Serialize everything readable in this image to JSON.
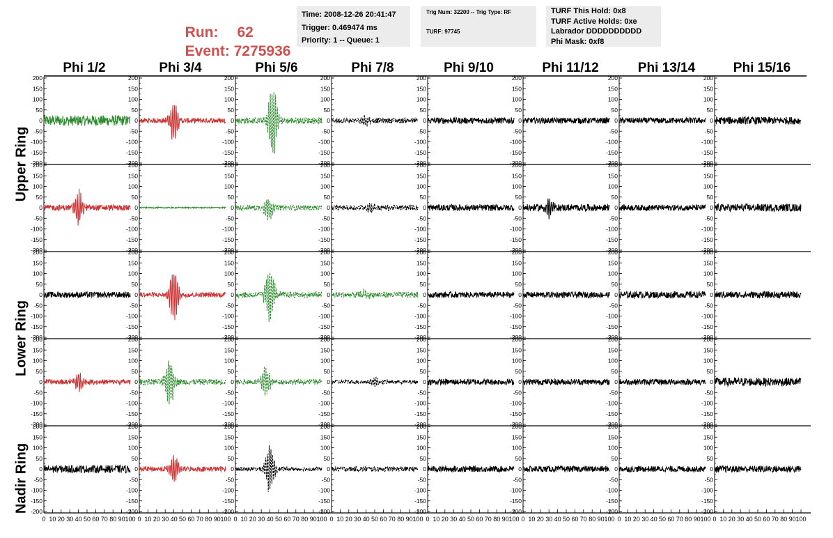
{
  "header": {
    "run_label": "Run:",
    "run_value": "62",
    "event_label": "Event:",
    "event_value": "7275936",
    "time": "Time: 2008-12-26 20:41:47",
    "trigger": "Trigger: 0.469474 ms",
    "priority": "Priority: 1 -- Queue: 1",
    "trig_num": "Trig Num: 32200 -- Trig Type: RF",
    "turf": "TURF: 97745",
    "turf_hold": "TURF This Hold: 0x8",
    "turf_active": "TURF Active Holds: 0xe",
    "labrador": "Labrador DDDDDDDDDD",
    "phi_mask": "Phi Mask: 0xf8"
  },
  "columns": [
    "Phi 1/2",
    "Phi 3/4",
    "Phi 5/6",
    "Phi 7/8",
    "Phi 9/10",
    "Phi 11/12",
    "Phi 13/14",
    "Phi 15/16"
  ],
  "rings": [
    "Upper Ring",
    "Lower Ring",
    "Nadir Ring"
  ],
  "y_ticks": [
    "200",
    "150",
    "100",
    "50",
    "0",
    "-50",
    "-100",
    "-150",
    "-200"
  ],
  "x_ticks": [
    "0",
    "10",
    "20",
    "30",
    "40",
    "50",
    "60",
    "70",
    "80",
    "90",
    "100"
  ],
  "colors": {
    "run_text": "#d05050",
    "green": "#2e8b2e",
    "red": "#cc3333",
    "black": "#000000",
    "info_bg": "#ececec"
  },
  "chart_data": {
    "type": "line",
    "xlim": [
      0,
      100
    ],
    "ylim": [
      -200,
      200
    ],
    "rows": 5,
    "cols": 8,
    "traces": [
      [
        {
          "color": "green",
          "amp": 25,
          "burst": 0,
          "style": "solid"
        },
        {
          "color": "red",
          "amp": 12,
          "burst": 100,
          "center": 40,
          "style": "solid"
        },
        {
          "color": "green",
          "amp": 15,
          "burst": 180,
          "center": 43,
          "style": "dashed"
        },
        {
          "color": "black",
          "amp": 12,
          "burst": 30,
          "center": 40,
          "style": "dashed"
        },
        {
          "color": "black",
          "amp": 15,
          "burst": 0,
          "style": "solid"
        },
        {
          "color": "black",
          "amp": 14,
          "burst": 0,
          "style": "solid"
        },
        {
          "color": "black",
          "amp": 14,
          "burst": 0,
          "style": "solid"
        },
        {
          "color": "black",
          "amp": 18,
          "burst": 0,
          "style": "solid"
        }
      ],
      [
        {
          "color": "red",
          "amp": 14,
          "burst": 90,
          "center": 40,
          "style": "solid"
        },
        {
          "color": "green",
          "amp": 3,
          "burst": 0,
          "style": "solid"
        },
        {
          "color": "green",
          "amp": 12,
          "burst": 70,
          "center": 38,
          "style": "dashed"
        },
        {
          "color": "black",
          "amp": 12,
          "burst": 25,
          "center": 45,
          "style": "dashed"
        },
        {
          "color": "black",
          "amp": 15,
          "burst": 0,
          "style": "solid"
        },
        {
          "color": "black",
          "amp": 16,
          "burst": 45,
          "center": 30,
          "style": "solid"
        },
        {
          "color": "black",
          "amp": 14,
          "burst": 0,
          "style": "solid"
        },
        {
          "color": "black",
          "amp": 18,
          "burst": 0,
          "style": "solid"
        }
      ],
      [
        {
          "color": "black",
          "amp": 14,
          "burst": 0,
          "style": "solid"
        },
        {
          "color": "red",
          "amp": 12,
          "burst": 140,
          "center": 40,
          "style": "solid"
        },
        {
          "color": "green",
          "amp": 14,
          "burst": 160,
          "center": 40,
          "style": "dashed"
        },
        {
          "color": "green",
          "amp": 14,
          "burst": 25,
          "center": 40,
          "style": "dashed"
        },
        {
          "color": "black",
          "amp": 14,
          "burst": 0,
          "style": "solid"
        },
        {
          "color": "black",
          "amp": 14,
          "burst": 0,
          "style": "solid"
        },
        {
          "color": "black",
          "amp": 16,
          "burst": 0,
          "style": "solid"
        },
        {
          "color": "black",
          "amp": 16,
          "burst": 0,
          "style": "solid"
        }
      ],
      [
        {
          "color": "red",
          "amp": 12,
          "burst": 50,
          "center": 40,
          "style": "solid"
        },
        {
          "color": "green",
          "amp": 14,
          "burst": 140,
          "center": 35,
          "style": "dashed"
        },
        {
          "color": "green",
          "amp": 12,
          "burst": 80,
          "center": 35,
          "style": "dashed"
        },
        {
          "color": "black",
          "amp": 10,
          "burst": 25,
          "center": 50,
          "style": "dashed"
        },
        {
          "color": "black",
          "amp": 14,
          "burst": 0,
          "style": "solid"
        },
        {
          "color": "black",
          "amp": 14,
          "burst": 0,
          "style": "solid"
        },
        {
          "color": "black",
          "amp": 14,
          "burst": 0,
          "style": "solid"
        },
        {
          "color": "black",
          "amp": 20,
          "burst": 0,
          "style": "solid"
        }
      ],
      [
        {
          "color": "black",
          "amp": 18,
          "burst": 0,
          "style": "solid"
        },
        {
          "color": "red",
          "amp": 12,
          "burst": 75,
          "center": 40,
          "style": "solid"
        },
        {
          "color": "black",
          "amp": 10,
          "burst": 120,
          "center": 40,
          "style": "dashed"
        },
        {
          "color": "black",
          "amp": 12,
          "burst": 0,
          "style": "dashed"
        },
        {
          "color": "black",
          "amp": 14,
          "burst": 0,
          "style": "solid"
        },
        {
          "color": "black",
          "amp": 14,
          "burst": 0,
          "style": "solid"
        },
        {
          "color": "black",
          "amp": 14,
          "burst": 0,
          "style": "solid"
        },
        {
          "color": "black",
          "amp": 16,
          "burst": 0,
          "style": "solid"
        }
      ]
    ]
  }
}
